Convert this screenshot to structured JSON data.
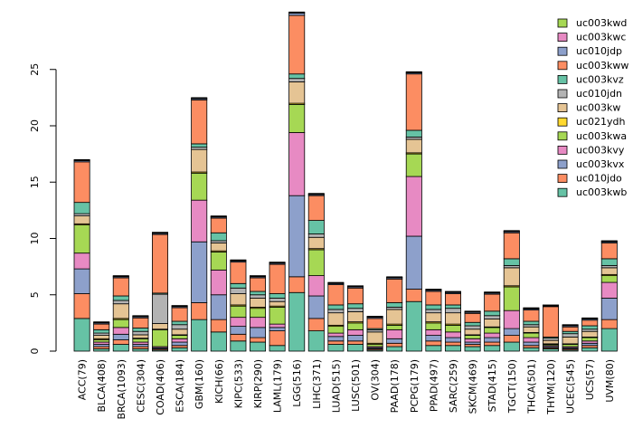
{
  "chart_data": {
    "type": "bar",
    "stacked": true,
    "title": "",
    "xlabel": "",
    "ylabel": "",
    "ylim": [
      0,
      30
    ],
    "yticks": [
      0,
      5,
      10,
      15,
      20,
      25
    ],
    "legend_position": "top-right",
    "categories": [
      "ACC(79)",
      "BLCA(408)",
      "BRCA(1093)",
      "CESC(304)",
      "COAD(406)",
      "ESCA(184)",
      "GBM(160)",
      "KICH(66)",
      "KIPC(533)",
      "KIRP(290)",
      "LAML(179)",
      "LGG(516)",
      "LIHC(371)",
      "LUAD(515)",
      "LUSC(501)",
      "OV(304)",
      "PAAD(178)",
      "PCPG(179)",
      "PPAD(497)",
      "SARC(259)",
      "SKCM(469)",
      "STAD(415)",
      "TGCT(150)",
      "THCA(501)",
      "THYM(120)",
      "UCEC(545)",
      "UCS(57)",
      "UVM(80)"
    ],
    "series": [
      {
        "name": "uc003kwb",
        "color": "#66C2A5",
        "values": [
          2.9,
          0.2,
          0.6,
          0.2,
          0.1,
          0.3,
          2.8,
          1.7,
          0.9,
          0.8,
          0.5,
          5.2,
          1.8,
          0.6,
          0.6,
          0.1,
          0.4,
          4.4,
          0.5,
          0.5,
          0.4,
          0.5,
          0.8,
          0.3,
          0.2,
          0.1,
          0.3,
          2.0
        ]
      },
      {
        "name": "uc010jdo",
        "color": "#FC8D62",
        "values": [
          2.2,
          0.2,
          0.4,
          0.2,
          0.1,
          0.2,
          1.5,
          1.1,
          0.6,
          0.4,
          1.3,
          1.4,
          1.1,
          0.3,
          0.3,
          0.1,
          0.3,
          1.1,
          0.4,
          0.3,
          0.2,
          0.3,
          0.6,
          0.2,
          0.1,
          0.1,
          0.2,
          0.8
        ]
      },
      {
        "name": "uc003kvx",
        "color": "#8DA0CB",
        "values": [
          2.2,
          0.2,
          0.5,
          0.2,
          0.1,
          0.3,
          5.4,
          2.2,
          0.7,
          0.9,
          0.3,
          7.2,
          2.0,
          0.4,
          0.5,
          0.1,
          0.4,
          4.7,
          0.5,
          0.4,
          0.2,
          0.4,
          0.6,
          0.3,
          0.1,
          0.1,
          0.2,
          1.9
        ]
      },
      {
        "name": "uc003kvy",
        "color": "#E78AC3",
        "values": [
          1.4,
          0.2,
          0.6,
          0.2,
          0.1,
          0.3,
          3.7,
          2.2,
          0.8,
          0.9,
          0.3,
          5.6,
          1.8,
          0.3,
          0.5,
          0.1,
          0.8,
          5.3,
          0.5,
          0.5,
          0.3,
          0.4,
          1.6,
          0.4,
          0.1,
          0.1,
          0.2,
          1.4
        ]
      },
      {
        "name": "uc003kwa",
        "color": "#A6D854",
        "values": [
          2.5,
          0.2,
          0.7,
          0.3,
          1.5,
          0.3,
          2.4,
          1.6,
          1.0,
          0.8,
          1.5,
          2.5,
          2.3,
          0.6,
          0.6,
          0.2,
          0.4,
          2.0,
          0.6,
          0.6,
          0.3,
          0.5,
          2.1,
          0.4,
          0.1,
          0.2,
          0.3,
          0.6
        ]
      },
      {
        "name": "uc021ydh",
        "color": "#FFD92F",
        "values": [
          0.1,
          0.1,
          0.1,
          0.05,
          0.05,
          0.05,
          0.1,
          0.1,
          0.1,
          0.1,
          0.1,
          0.1,
          0.1,
          0.1,
          0.1,
          0.1,
          0.1,
          0.1,
          0.1,
          0.1,
          0.05,
          0.05,
          0.1,
          0.05,
          0.05,
          0.05,
          0.05,
          0.1
        ]
      },
      {
        "name": "uc003kw",
        "color": "#E5C494",
        "values": [
          0.7,
          0.3,
          1.3,
          0.3,
          0.5,
          0.5,
          2.0,
          0.7,
          1.0,
          0.8,
          0.4,
          1.9,
          1.0,
          1.1,
          0.9,
          1.0,
          1.3,
          1.2,
          0.8,
          1.0,
          0.5,
          0.7,
          1.6,
          0.5,
          0.3,
          0.6,
          0.5,
          0.6
        ]
      },
      {
        "name": "uc010jdn",
        "color": "#B3B3B3",
        "values": [
          0.2,
          0.2,
          0.3,
          0.3,
          2.6,
          0.4,
          0.2,
          0.2,
          0.5,
          0.3,
          0.3,
          0.3,
          0.3,
          0.3,
          0.3,
          0.2,
          0.2,
          0.2,
          0.3,
          0.4,
          0.3,
          0.3,
          0.2,
          0.2,
          0.2,
          0.3,
          0.2,
          0.2
        ]
      },
      {
        "name": "uc003kvz",
        "color": "#66C2A5",
        "values": [
          1.0,
          0.3,
          0.4,
          0.3,
          0.1,
          0.3,
          0.3,
          0.7,
          0.4,
          0.3,
          0.4,
          0.4,
          1.2,
          0.4,
          0.4,
          0.1,
          0.4,
          0.6,
          0.4,
          0.3,
          0.3,
          0.4,
          0.6,
          0.3,
          0.1,
          0.2,
          0.3,
          0.6
        ]
      },
      {
        "name": "uc003kww",
        "color": "#FC8D62",
        "values": [
          3.6,
          0.5,
          1.6,
          0.9,
          5.2,
          1.2,
          3.9,
          1.3,
          1.9,
          1.2,
          2.6,
          5.2,
          2.2,
          1.8,
          1.4,
          0.9,
          2.1,
          5.0,
          1.2,
          1.0,
          0.8,
          1.5,
          2.3,
          1.0,
          2.7,
          0.4,
          0.5,
          1.4
        ]
      },
      {
        "name": "uc010jdp",
        "color": "#8DA0CB",
        "values": [
          0.1,
          0.1,
          0.1,
          0.1,
          0.1,
          0.1,
          0.1,
          0.1,
          0.1,
          0.1,
          0.1,
          0.2,
          0.1,
          0.1,
          0.1,
          0.1,
          0.1,
          0.1,
          0.1,
          0.1,
          0.1,
          0.1,
          0.1,
          0.1,
          0.05,
          0.1,
          0.1,
          0.1
        ]
      },
      {
        "name": "uc003kwc",
        "color": "#E78AC3",
        "values": [
          0.05,
          0.05,
          0.05,
          0.05,
          0.05,
          0.05,
          0.05,
          0.05,
          0.05,
          0.05,
          0.05,
          0.05,
          0.05,
          0.05,
          0.05,
          0.05,
          0.05,
          0.05,
          0.05,
          0.05,
          0.05,
          0.05,
          0.05,
          0.05,
          0.05,
          0.05,
          0.05,
          0.05
        ]
      },
      {
        "name": "uc003kwd",
        "color": "#A6D854",
        "values": [
          0.05,
          0.05,
          0.05,
          0.05,
          0.05,
          0.05,
          0.05,
          0.05,
          0.05,
          0.05,
          0.05,
          0.05,
          0.05,
          0.05,
          0.05,
          0.05,
          0.05,
          0.05,
          0.05,
          0.05,
          0.05,
          0.05,
          0.05,
          0.05,
          0.05,
          0.05,
          0.05,
          0.05
        ]
      }
    ]
  }
}
